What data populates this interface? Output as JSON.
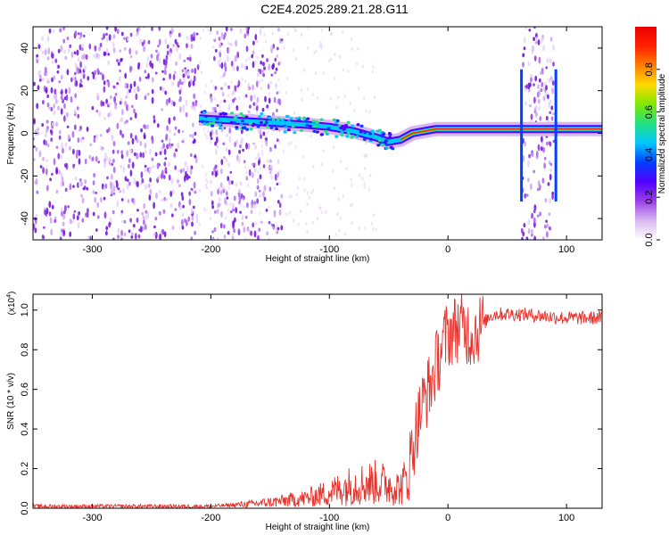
{
  "chart_data": [
    {
      "type": "heatmap",
      "title": "C2E4.2025.289.21.28.G11",
      "xlabel": "Height of straight line (km)",
      "ylabel": "Frequency (Hz)",
      "xlim": [
        -350,
        130
      ],
      "ylim": [
        -50,
        50
      ],
      "x_ticks": [
        -300,
        -200,
        -100,
        0,
        100
      ],
      "y_ticks": [
        -40,
        -20,
        0,
        20,
        40
      ],
      "colorbar": {
        "label": "Normalized spectral amplitude",
        "range": [
          0,
          1
        ],
        "ticks": [
          "0.0",
          "0.2",
          "0.4",
          "0.6",
          "0.8"
        ]
      },
      "ridge": {
        "x": [
          -210,
          -180,
          -150,
          -120,
          -100,
          -80,
          -60,
          -50,
          -40,
          -30,
          -20,
          -10,
          0,
          20,
          40,
          60,
          62,
          90,
          92,
          130
        ],
        "y": [
          7,
          6,
          5,
          4,
          3,
          1,
          -2,
          -4,
          -3,
          0,
          1,
          2,
          2,
          2,
          2,
          2,
          2,
          2,
          2,
          2
        ]
      },
      "noise_regions_x": [
        [
          -350,
          -210
        ],
        [
          -200,
          -140
        ],
        [
          62,
          90
        ]
      ]
    },
    {
      "type": "line",
      "xlabel": "Height of straight line (km)",
      "ylabel": "SNR (10 * v/v)",
      "y_multiplier": "(x10",
      "y_multiplier_exp": "4",
      "xlim": [
        -350,
        130
      ],
      "ylim": [
        0,
        1.08
      ],
      "x_ticks": [
        -300,
        -200,
        -100,
        0,
        100
      ],
      "y_ticks": [
        "0.0",
        "0.2",
        "0.4",
        "0.6",
        "0.8",
        "1.0"
      ],
      "series": [
        {
          "name": "SNR",
          "color": "#e8322c",
          "x": [
            -350,
            -300,
            -250,
            -200,
            -170,
            -150,
            -120,
            -100,
            -80,
            -60,
            -50,
            -40,
            -35,
            -30,
            -25,
            -20,
            -15,
            -10,
            -5,
            0,
            5,
            10,
            15,
            20,
            25,
            30,
            35,
            40,
            60,
            80,
            100,
            130
          ],
          "y": [
            0.01,
            0.01,
            0.01,
            0.01,
            0.02,
            0.03,
            0.05,
            0.08,
            0.12,
            0.13,
            0.12,
            0.1,
            0.15,
            0.3,
            0.45,
            0.55,
            0.62,
            0.72,
            0.82,
            0.88,
            0.9,
            0.92,
            0.9,
            0.88,
            0.9,
            0.93,
            0.97,
            0.98,
            0.98,
            0.97,
            0.96,
            0.96
          ]
        }
      ]
    }
  ],
  "colors": {
    "colorbar": [
      "#ffffff",
      "#d8b8f0",
      "#9a40e8",
      "#5000ff",
      "#0040ff",
      "#00c8ff",
      "#20e080",
      "#80e800",
      "#ffd800",
      "#ff8000",
      "#ff2000",
      "#e80000"
    ],
    "noise": "#8a2be2",
    "axes": "#000000"
  }
}
